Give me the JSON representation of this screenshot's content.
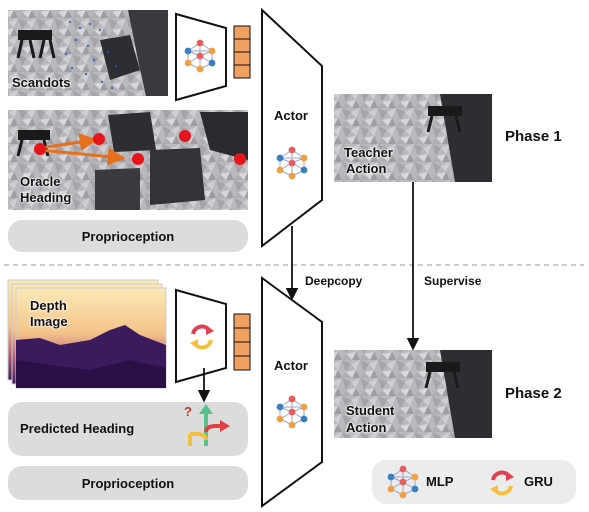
{
  "phase1": {
    "label": "Phase 1",
    "inputs": {
      "scandots": "Scandots",
      "oracle_heading_line1": "Oracle",
      "oracle_heading_line2": "Heading",
      "proprioception": "Proprioception"
    },
    "actor": "Actor",
    "output_line1": "Teacher",
    "output_line2": "Action"
  },
  "phase2": {
    "label": "Phase 2",
    "inputs": {
      "depth_image_line1": "Depth",
      "depth_image_line2": "Image",
      "predicted_heading": "Predicted Heading",
      "proprioception": "Proprioception"
    },
    "actor": "Actor",
    "output_line1": "Student",
    "output_line2": "Action"
  },
  "edges": {
    "deepcopy": "Deepcopy",
    "supervise": "Supervise"
  },
  "legend": {
    "mlp": "MLP",
    "gru": "GRU"
  },
  "heading_glyph": "?",
  "colors": {
    "pill": "#dcdcdc",
    "legend_bg": "#ececec",
    "embedding_orange": "#f0a060",
    "waypoint_red": "#e8141c",
    "arrow_orange": "#e8701c",
    "node_blue": "#3a7fc0",
    "node_red": "#e85c5c",
    "node_orange": "#f0a040",
    "gru_red": "#e04050",
    "gru_yellow": "#f5c040",
    "heading_green": "#5cc08c",
    "heading_red": "#e04040",
    "heading_yellow": "#f0c040",
    "question_mark": "#c0392b"
  }
}
